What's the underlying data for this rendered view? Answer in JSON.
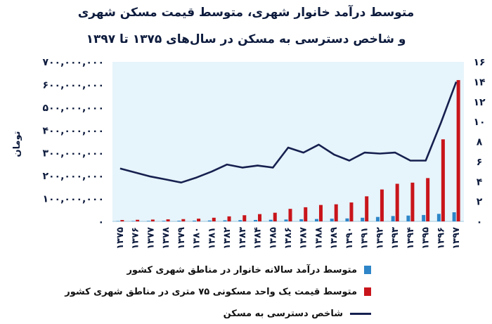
{
  "chart_data": {
    "type": "bar",
    "title": "متوسط درآمد خانوار شهری، متوسط قیمت مسکن شهری",
    "subtitle": "و شاخص دسترسی به مسکن در سال‌های ۱۳۷۵ تا ۱۳۹۷",
    "ylabel": "تومان",
    "ylim": [
      0,
      700000000
    ],
    "y2lim": [
      0,
      16
    ],
    "y_ticks": [
      "۰",
      "۱۰۰,۰۰۰,۰۰۰",
      "۲۰۰,۰۰۰,۰۰۰",
      "۳۰۰,۰۰۰,۰۰۰",
      "۴۰۰,۰۰۰,۰۰۰",
      "۵۰۰,۰۰۰,۰۰۰",
      "۶۰۰,۰۰۰,۰۰۰",
      "۷۰۰,۰۰۰,۰۰۰"
    ],
    "y2_ticks": [
      "۰",
      "۲",
      "۴",
      "۶",
      "۸",
      "۱۰",
      "۱۲",
      "۱۴",
      "۱۶"
    ],
    "categories": [
      "۱۳۷۵",
      "۱۳۷۶",
      "۱۳۷۷",
      "۱۳۷۸",
      "۱۳۷۹",
      "۱۳۸۰",
      "۱۳۸۱",
      "۱۳۸۲",
      "۱۳۸۳",
      "۱۳۸۴",
      "۱۳۸۵",
      "۱۳۸۶",
      "۱۳۸۷",
      "۱۳۸۸",
      "۱۳۸۹",
      "۱۳۹۰",
      "۱۳۹۱",
      "۱۳۹۲",
      "۱۳۹۳",
      "۱۳۹۴",
      "۱۳۹۵",
      "۱۳۹۶",
      "۱۳۹۷"
    ],
    "series": [
      {
        "name": "متوسط درآمد سالانه خانوار در مناطق شهری کشور",
        "kind": "bar",
        "axis": "left",
        "color": "#2e86c8",
        "values": [
          1500000,
          1800000,
          2100000,
          2500000,
          2900000,
          3300000,
          3900000,
          4600000,
          5400000,
          6300000,
          7200000,
          8300000,
          9500000,
          10500000,
          11800000,
          13000000,
          16000000,
          19500000,
          23500000,
          25500000,
          28000000,
          33000000,
          40000000
        ]
      },
      {
        "name": "متوسط قیمت یک واحد مسکونی ۷۵ متری در مناطق شهری کشور",
        "kind": "bar",
        "axis": "left",
        "color": "#c8151b",
        "values": [
          6000000,
          7000000,
          8000000,
          9000000,
          10000000,
          12000000,
          16000000,
          22000000,
          27000000,
          32000000,
          38000000,
          55000000,
          62000000,
          72000000,
          75000000,
          83000000,
          110000000,
          140000000,
          165000000,
          170000000,
          190000000,
          360000000,
          620000000
        ]
      },
      {
        "name": "شاخص دسترسی به مسکن",
        "kind": "line",
        "axis": "right",
        "color": "#16204f",
        "values": [
          5.3,
          4.9,
          4.5,
          4.2,
          3.9,
          4.4,
          5.0,
          5.7,
          5.4,
          5.6,
          5.4,
          7.4,
          6.9,
          7.7,
          6.7,
          6.1,
          6.9,
          6.8,
          6.9,
          6.1,
          6.1,
          9.9,
          14.0
        ]
      }
    ],
    "grid": false,
    "legend_position": "bottom"
  }
}
